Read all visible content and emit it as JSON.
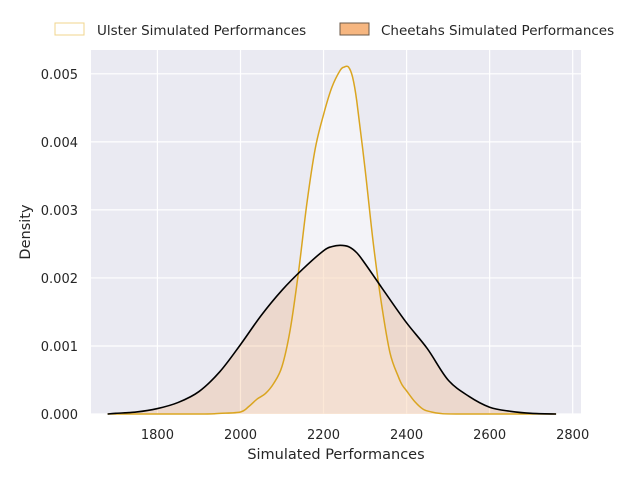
{
  "chart_data": {
    "type": "area",
    "title": "",
    "xlabel": "Simulated Performances",
    "ylabel": "Density",
    "xlim": [
      1640,
      2820
    ],
    "ylim": [
      0,
      0.00535
    ],
    "xticks": [
      1800,
      2000,
      2200,
      2400,
      2600,
      2800
    ],
    "xtick_labels": [
      "1800",
      "2000",
      "2200",
      "2400",
      "2600",
      "2800"
    ],
    "yticks": [
      0,
      0.001,
      0.002,
      0.003,
      0.004,
      0.005
    ],
    "ytick_labels": [
      "0.000",
      "0.001",
      "0.002",
      "0.003",
      "0.004",
      "0.005"
    ],
    "grid": true,
    "background": "#eaeaf2",
    "legend_position": "top",
    "series": [
      {
        "name": "Ulster Simulated Performances",
        "fill": "#ffffff",
        "fill_opacity": 0.45,
        "line": "#daa520",
        "x": [
          1680,
          1900,
          1950,
          2000,
          2020,
          2040,
          2060,
          2080,
          2100,
          2120,
          2140,
          2160,
          2180,
          2200,
          2220,
          2240,
          2250,
          2260,
          2270,
          2280,
          2300,
          2320,
          2340,
          2360,
          2380,
          2390,
          2400,
          2420,
          2440,
          2460,
          2480,
          2520,
          2760
        ],
        "y": [
          0,
          0,
          1e-05,
          3e-05,
          0.00011,
          0.00022,
          0.0003,
          0.00045,
          0.0007,
          0.00125,
          0.0021,
          0.0031,
          0.0039,
          0.0044,
          0.0048,
          0.00505,
          0.0051,
          0.0051,
          0.00495,
          0.0046,
          0.0036,
          0.0025,
          0.0016,
          0.0009,
          0.00055,
          0.00042,
          0.00034,
          0.00018,
          7e-05,
          3e-05,
          1e-05,
          0,
          0
        ]
      },
      {
        "name": "Cheetahs Simulated Performances",
        "fill": "#f4a460",
        "fill_opacity": 0.25,
        "line": "#000000",
        "x": [
          1680,
          1700,
          1750,
          1800,
          1850,
          1900,
          1950,
          2000,
          2050,
          2100,
          2150,
          2200,
          2220,
          2240,
          2260,
          2280,
          2300,
          2350,
          2400,
          2450,
          2500,
          2550,
          2600,
          2650,
          2700,
          2760
        ],
        "y": [
          0,
          1e-05,
          3e-05,
          8e-05,
          0.00017,
          0.00033,
          0.00062,
          0.00102,
          0.00145,
          0.00182,
          0.00213,
          0.0024,
          0.00246,
          0.00248,
          0.00246,
          0.00237,
          0.00221,
          0.00177,
          0.00134,
          0.00096,
          0.0005,
          0.00026,
          0.0001,
          4e-05,
          1e-05,
          0
        ]
      }
    ]
  }
}
